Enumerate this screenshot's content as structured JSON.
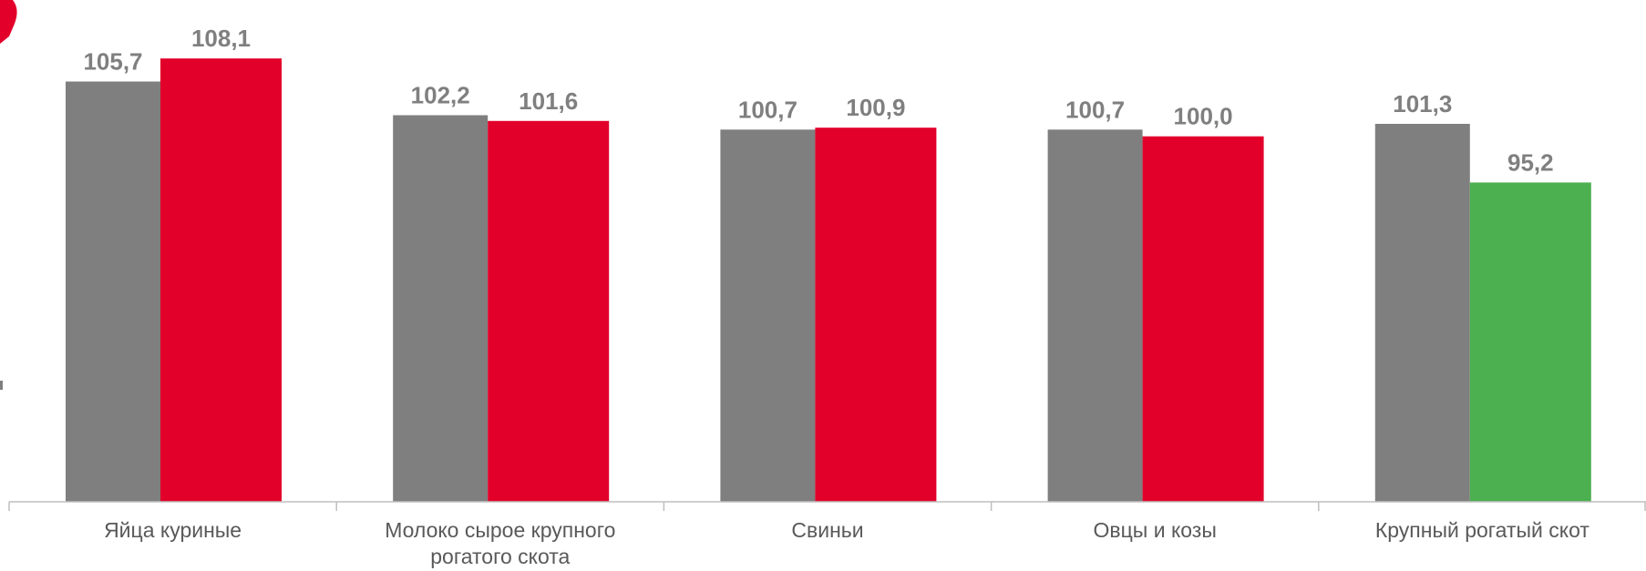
{
  "chart_data": {
    "type": "bar",
    "title": "",
    "xlabel": "",
    "ylabel": "",
    "grid": false,
    "legend": "none",
    "ylim": [
      62,
      110
    ],
    "categories": [
      [
        "Яйца куриные"
      ],
      [
        "Молоко сырое крупного",
        "рогатого скота"
      ],
      [
        "Свиньи"
      ],
      [
        "Овцы и козы"
      ],
      [
        "Крупный рогатый скот"
      ]
    ],
    "series": [
      {
        "values": [
          105.7,
          102.2,
          100.7,
          100.7,
          101.3
        ],
        "labels": [
          "105,7",
          "102,2",
          "100,7",
          "100,7",
          "101,3"
        ],
        "color": "#7f7f7f"
      },
      {
        "values": [
          108.1,
          101.6,
          100.9,
          100.0,
          95.2
        ],
        "labels": [
          "108,1",
          "101,6",
          "100,9",
          "100,0",
          "95,2"
        ],
        "color": "#e2002a",
        "below_100_color": "#4caf50"
      }
    ],
    "axis_color": "#bfbfbf"
  }
}
